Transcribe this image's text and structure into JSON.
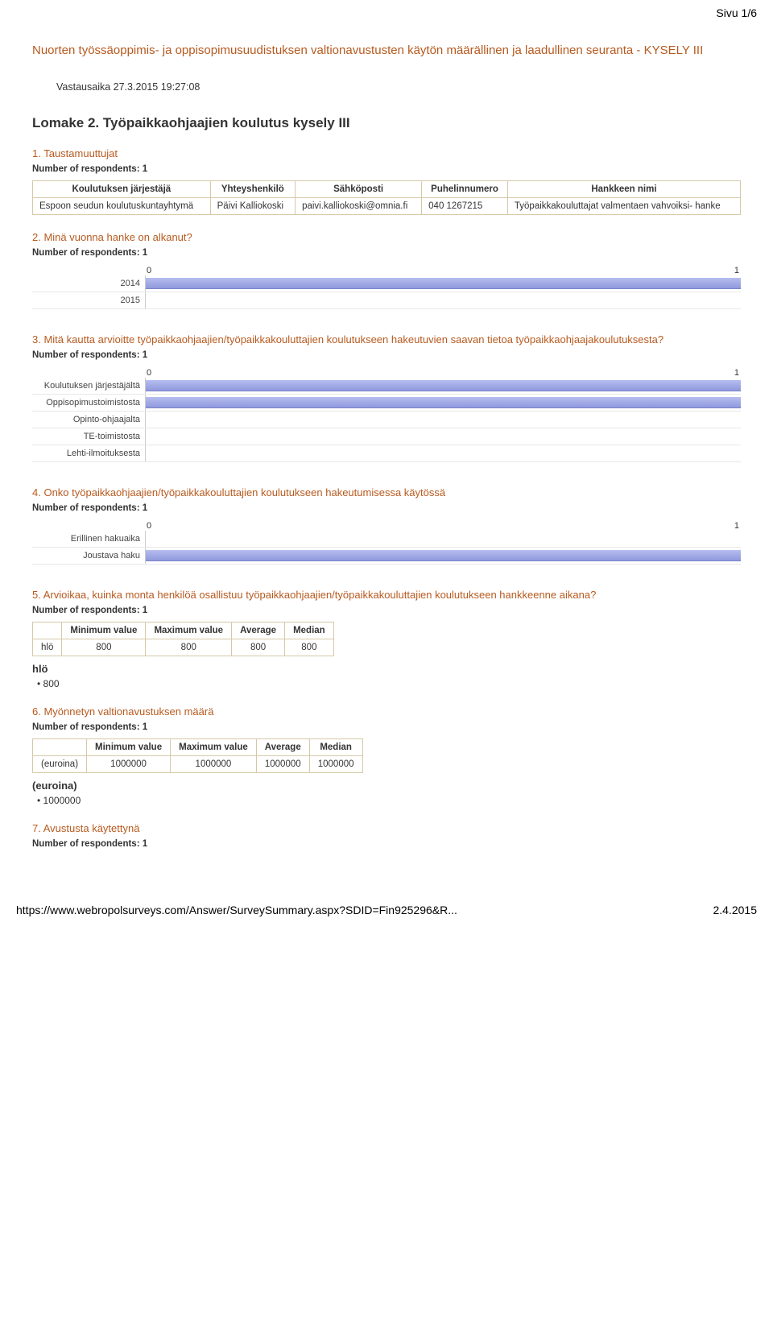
{
  "page_label": "Sivu 1/6",
  "survey_title": "Nuorten työssäoppimis- ja oppisopimusuudistuksen valtionavustusten käytön määrällinen ja laadullinen seuranta - KYSELY III",
  "timestamp": "Vastausaika 27.3.2015 19:27:08",
  "form_title": "Lomake 2. Työpaikkaohjaajien koulutus kysely III",
  "respondents_label": "Number of respondents: 1",
  "sections": {
    "s1": {
      "heading": "1. Taustamuuttujat",
      "table": {
        "headers": [
          "Koulutuksen järjestäjä",
          "Yhteyshenkilö",
          "Sähköposti",
          "Puhelinnumero",
          "Hankkeen nimi"
        ],
        "row": [
          "Espoon seudun koulutuskuntayhtymä",
          "Päivi Kalliokoski",
          "paivi.kalliokoski@omnia.fi",
          "040 1267215",
          "Työpaikkakouluttajat valmentaen vahvoiksi- hanke"
        ]
      }
    },
    "s2": {
      "heading": "2. Minä vuonna hanke on alkanut?",
      "chart": {
        "ticks": [
          "0",
          "1"
        ],
        "categories": [
          "2014",
          "2015"
        ],
        "values": [
          1,
          0
        ],
        "bar_color": "#9aa3e4",
        "grid_color": "#e8e8e8",
        "label_width": 140
      }
    },
    "s3": {
      "heading": "3. Mitä kautta arvioitte työpaikkaohjaajien/työpaikkakouluttajien koulutukseen hakeutuvien saavan tietoa työpaikkaohjaajakoulutuksesta?",
      "chart": {
        "ticks": [
          "0",
          "1"
        ],
        "categories": [
          "Koulutuksen järjestäjältä",
          "Oppisopimustoimistosta",
          "Opinto-ohjaajalta",
          "TE-toimistosta",
          "Lehti-ilmoituksesta"
        ],
        "values": [
          1,
          1,
          0,
          0,
          0
        ],
        "bar_color": "#9aa3e4",
        "grid_color": "#e8e8e8",
        "label_width": 140
      }
    },
    "s4": {
      "heading": "4. Onko työpaikkaohjaajien/työpaikkakouluttajien koulutukseen hakeutumisessa käytössä",
      "chart": {
        "ticks": [
          "0",
          "1"
        ],
        "categories": [
          "Erillinen hakuaika",
          "Joustava haku"
        ],
        "values": [
          0,
          1
        ],
        "bar_color": "#9aa3e4",
        "grid_color": "#e8e8e8",
        "label_width": 140
      }
    },
    "s5": {
      "heading": "5. Arvioikaa, kuinka monta henkilöä osallistuu työpaikkaohjaajien/työpaikkakouluttajien koulutukseen hankkeenne aikana?",
      "stats": {
        "headers": [
          "",
          "Minimum value",
          "Maximum value",
          "Average",
          "Median"
        ],
        "row": [
          "hlö",
          "800",
          "800",
          "800",
          "800"
        ]
      },
      "value_label": "hlö",
      "bullet": "800"
    },
    "s6": {
      "heading": "6. Myönnetyn valtionavustuksen määrä",
      "stats": {
        "headers": [
          "",
          "Minimum value",
          "Maximum value",
          "Average",
          "Median"
        ],
        "row": [
          "(euroina)",
          "1000000",
          "1000000",
          "1000000",
          "1000000"
        ]
      },
      "value_label": "(euroina)",
      "bullet": "1000000"
    },
    "s7": {
      "heading": "7. Avustusta käytettynä"
    }
  },
  "footer": {
    "url": "https://www.webropolsurveys.com/Answer/SurveySummary.aspx?SDID=Fin925296&R...",
    "date": "2.4.2015"
  }
}
